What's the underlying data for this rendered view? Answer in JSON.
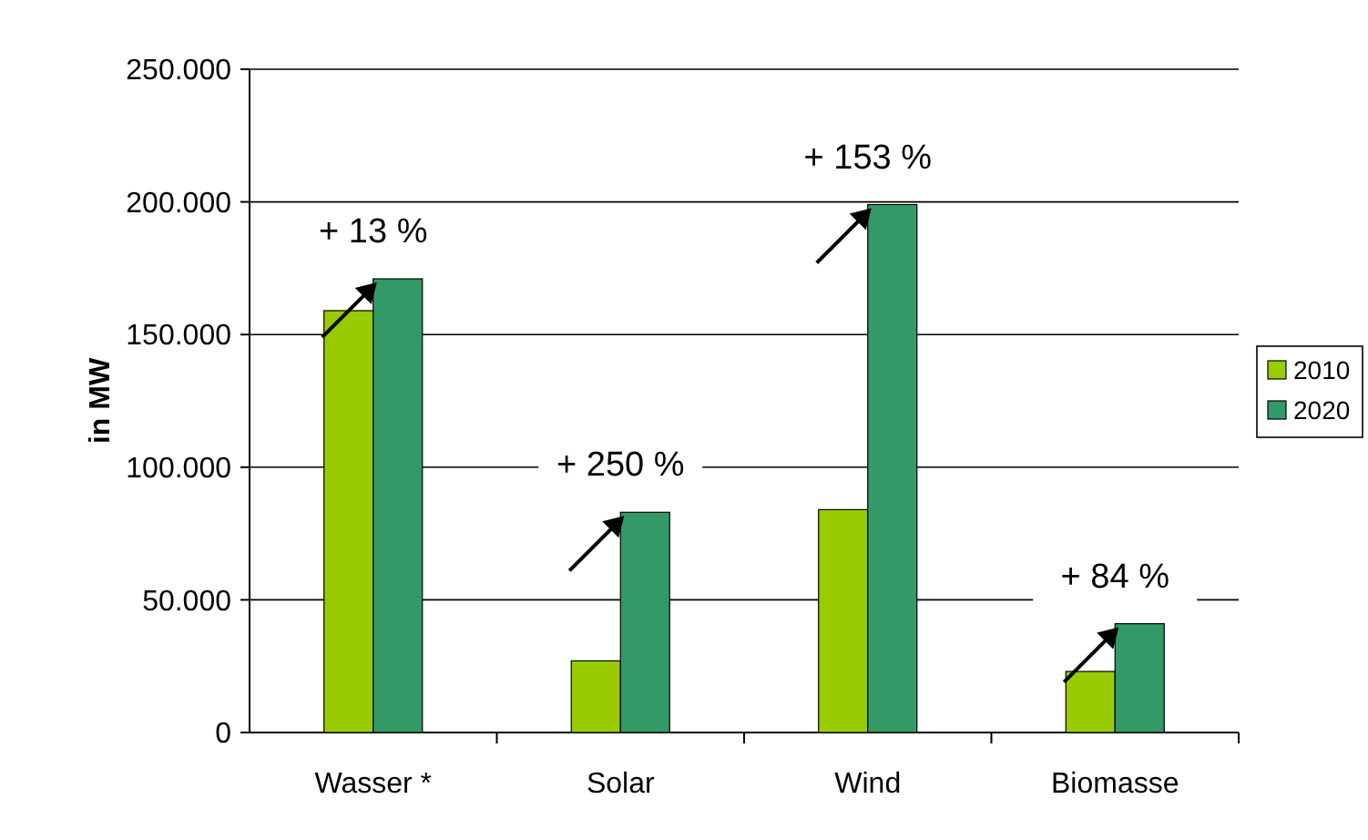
{
  "chart_data": {
    "type": "bar",
    "ylabel": "in MW",
    "categories": [
      "Wasser *",
      "Solar",
      "Wind",
      "Biomasse"
    ],
    "series": [
      {
        "name": "2010",
        "color": "#99cc00",
        "values": [
          159000,
          27000,
          84000,
          23000
        ]
      },
      {
        "name": "2020",
        "color": "#339966",
        "values": [
          171000,
          83000,
          199000,
          41000
        ]
      }
    ],
    "ylim": [
      0,
      250000
    ],
    "yticks": [
      {
        "value": 0,
        "label": "0"
      },
      {
        "value": 50000,
        "label": "50.000"
      },
      {
        "value": 100000,
        "label": "100.000"
      },
      {
        "value": 150000,
        "label": "150.000"
      },
      {
        "value": 200000,
        "label": "200.000"
      },
      {
        "value": 250000,
        "label": "250.000"
      }
    ],
    "grid": "y",
    "legend": "right",
    "annotations": [
      "+ 13 %",
      "+ 250 %",
      "+ 153 %",
      "+ 84 %"
    ]
  }
}
